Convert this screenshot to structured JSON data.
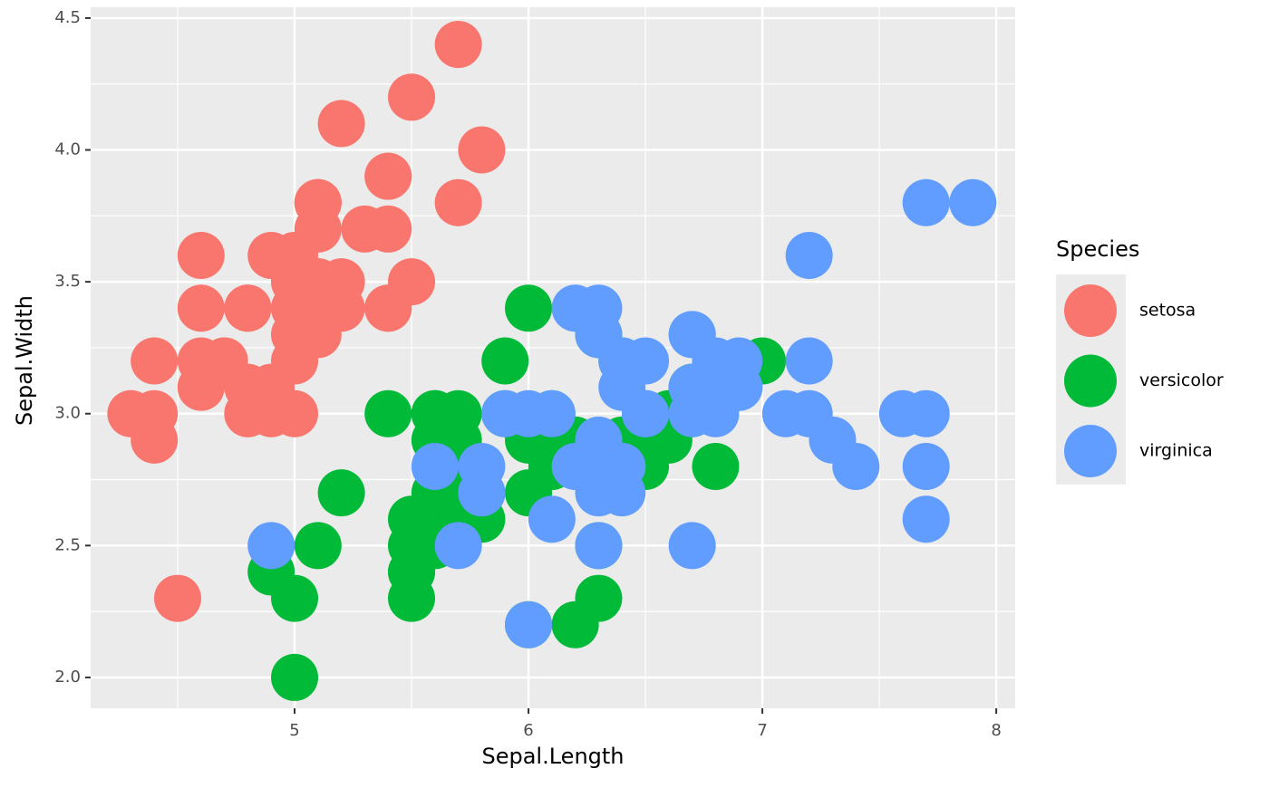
{
  "chart_data": {
    "type": "scatter",
    "x_label": "Sepal.Length",
    "y_label": "Sepal.Width",
    "legend_title": "Species",
    "legend_position": "right",
    "grid": true,
    "xlim": [
      4.128,
      8.081
    ],
    "ylim": [
      1.883,
      4.541
    ],
    "xticks": [
      5,
      6,
      7,
      8
    ],
    "yticks": [
      {
        "value": 2.0,
        "label": "2.0"
      },
      2.5,
      {
        "value": 3.0,
        "label": "3.0"
      },
      3.5,
      {
        "value": 4.0,
        "label": "4.0"
      },
      4.5
    ],
    "series": [
      {
        "name": "setosa",
        "color": "#F8766D",
        "x": [
          5.1,
          4.9,
          4.7,
          4.6,
          5.0,
          5.4,
          4.6,
          5.0,
          4.4,
          4.9,
          5.4,
          4.8,
          4.8,
          4.3,
          5.8,
          5.7,
          5.4,
          5.1,
          5.7,
          5.1,
          5.4,
          5.1,
          4.6,
          5.1,
          4.8,
          5.0,
          5.0,
          5.2,
          5.2,
          4.7,
          4.8,
          5.4,
          5.2,
          5.5,
          4.9,
          5.0,
          5.5,
          4.9,
          4.4,
          5.1,
          5.0,
          4.5,
          4.4,
          5.0,
          5.1,
          4.8,
          5.1,
          4.6,
          5.3,
          5.0
        ],
        "values": [
          3.5,
          3.0,
          3.2,
          3.1,
          3.6,
          3.9,
          3.4,
          3.4,
          2.9,
          3.1,
          3.7,
          3.4,
          3.0,
          3.0,
          4.0,
          4.4,
          3.9,
          3.5,
          3.8,
          3.8,
          3.4,
          3.7,
          3.6,
          3.3,
          3.4,
          3.0,
          3.4,
          3.5,
          3.4,
          3.2,
          3.1,
          3.4,
          4.1,
          4.2,
          3.1,
          3.2,
          3.5,
          3.6,
          3.0,
          3.4,
          3.5,
          2.3,
          3.2,
          3.5,
          3.8,
          3.0,
          3.8,
          3.2,
          3.7,
          3.3
        ]
      },
      {
        "name": "versicolor",
        "color": "#00BA38",
        "x": [
          7.0,
          6.4,
          6.9,
          5.5,
          6.5,
          5.7,
          6.3,
          4.9,
          6.6,
          5.2,
          5.0,
          5.9,
          6.0,
          6.1,
          5.6,
          6.7,
          5.6,
          5.8,
          6.2,
          5.6,
          5.9,
          6.1,
          6.3,
          6.1,
          6.4,
          6.6,
          6.8,
          6.7,
          6.0,
          5.7,
          5.5,
          5.5,
          5.8,
          6.0,
          5.4,
          6.0,
          6.7,
          6.3,
          5.6,
          5.5,
          5.5,
          6.1,
          5.8,
          5.0,
          5.6,
          5.7,
          5.7,
          6.2,
          5.1,
          5.7
        ],
        "values": [
          3.2,
          3.2,
          3.1,
          2.3,
          2.8,
          2.8,
          3.3,
          2.4,
          2.9,
          2.7,
          2.0,
          3.0,
          2.2,
          2.9,
          2.9,
          3.1,
          3.0,
          2.7,
          2.2,
          2.5,
          3.2,
          2.8,
          2.5,
          2.8,
          2.9,
          3.0,
          2.8,
          3.0,
          2.9,
          2.6,
          2.4,
          2.4,
          2.7,
          2.7,
          3.0,
          3.4,
          3.1,
          2.3,
          3.0,
          2.5,
          2.6,
          3.0,
          2.6,
          2.3,
          2.7,
          3.0,
          2.9,
          2.9,
          2.5,
          2.8
        ]
      },
      {
        "name": "virginica",
        "color": "#619CFF",
        "x": [
          6.3,
          5.8,
          7.1,
          6.3,
          6.5,
          7.6,
          4.9,
          7.3,
          6.7,
          7.2,
          6.5,
          6.4,
          6.8,
          5.7,
          5.8,
          6.4,
          6.5,
          7.7,
          7.7,
          6.0,
          6.9,
          5.6,
          7.7,
          6.3,
          6.7,
          7.2,
          6.2,
          6.1,
          6.4,
          7.2,
          7.4,
          7.9,
          6.4,
          6.3,
          6.1,
          7.7,
          6.3,
          6.4,
          6.0,
          6.9,
          6.7,
          6.9,
          5.8,
          6.8,
          6.7,
          6.7,
          6.3,
          6.5,
          6.2,
          5.9
        ],
        "values": [
          3.3,
          2.7,
          3.0,
          2.9,
          3.0,
          3.0,
          2.5,
          2.9,
          2.5,
          3.6,
          3.2,
          2.7,
          3.0,
          2.5,
          2.8,
          3.2,
          3.0,
          3.8,
          2.6,
          2.2,
          3.2,
          2.8,
          2.8,
          2.7,
          3.3,
          3.2,
          2.8,
          3.0,
          2.8,
          3.0,
          2.8,
          3.8,
          2.8,
          2.8,
          2.6,
          3.0,
          3.4,
          3.1,
          3.0,
          3.1,
          3.1,
          3.1,
          2.7,
          3.2,
          3.3,
          3.0,
          2.5,
          3.0,
          3.4,
          3.0
        ]
      }
    ]
  }
}
